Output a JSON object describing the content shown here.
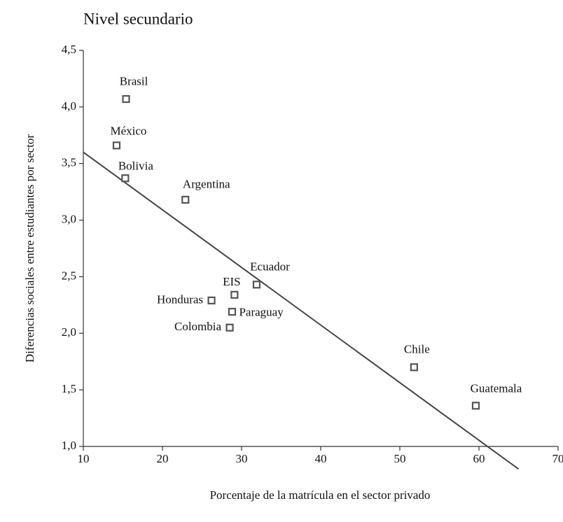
{
  "chart_data": {
    "type": "scatter",
    "title": "Nivel secundario",
    "xlabel": "Porcentaje de la matrícula en el sector privado",
    "ylabel": "Diferencias sociales entre estudiantes por sector",
    "labels": [
      "Brasil",
      "México",
      "Bolivia",
      "Argentina",
      "Ecuador",
      "EIS",
      "Honduras",
      "Paraguay",
      "Colombia",
      "Chile",
      "Guatemala"
    ],
    "x": [
      15.4,
      14.2,
      15.3,
      22.9,
      31.9,
      29.1,
      26.2,
      28.8,
      28.5,
      51.8,
      59.6
    ],
    "values": [
      4.07,
      3.66,
      3.37,
      3.18,
      2.43,
      2.34,
      2.29,
      2.19,
      2.05,
      1.7,
      1.36
    ],
    "color": "#555555",
    "trendline": {
      "x": [
        10,
        65
      ],
      "y": [
        3.6,
        0.8
      ],
      "color": "#444444"
    },
    "xlim": [
      10,
      70
    ],
    "xticks": [
      10,
      20,
      30,
      40,
      50,
      60,
      70
    ],
    "ylim": [
      1.0,
      4.5
    ],
    "yticks": [
      {
        "value": 1.0,
        "label": "1,0"
      },
      {
        "value": 1.5,
        "label": "1,5"
      },
      {
        "value": 2.0,
        "label": "2,0"
      },
      {
        "value": 2.5,
        "label": "2,5"
      },
      {
        "value": 3.0,
        "label": "3,0"
      },
      {
        "value": 3.5,
        "label": "3,5"
      },
      {
        "value": 4.0,
        "label": "4,0"
      },
      {
        "value": 4.5,
        "label": "4,5"
      }
    ]
  }
}
